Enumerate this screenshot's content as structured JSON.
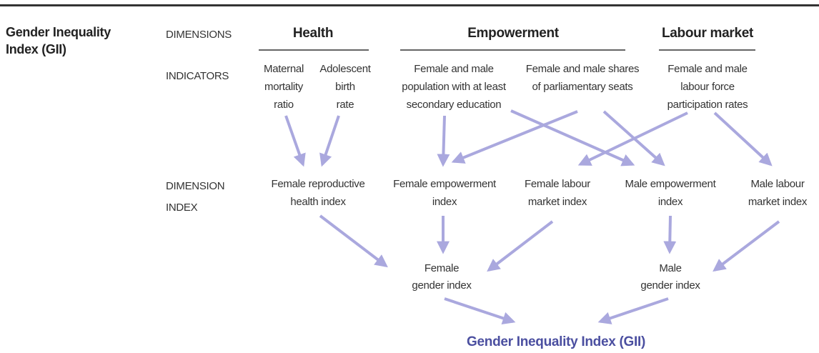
{
  "title": [
    "Gender Inequality",
    "Index (GII)"
  ],
  "row_labels": {
    "dimensions": [
      "DIMENSIONS"
    ],
    "indicators": [
      "INDICATORS"
    ],
    "dimension_index": [
      "DIMENSION",
      "INDEX"
    ]
  },
  "dimensions": [
    "Health",
    "Empowerment",
    "Labour market"
  ],
  "indicators": [
    [
      "Maternal",
      "mortality",
      "ratio"
    ],
    [
      "Adolescent",
      "birth",
      "rate"
    ],
    [
      "Female and male",
      "population with at least",
      "secondary education"
    ],
    [
      "Female and male shares",
      "of parliamentary seats"
    ],
    [
      "Female and male",
      "labour force",
      "participation rates"
    ]
  ],
  "dimension_indices": [
    [
      "Female reproductive",
      "health index"
    ],
    [
      "Female empowerment",
      "index"
    ],
    [
      "Female labour",
      "market index"
    ],
    [
      "Male empowerment",
      "index"
    ],
    [
      "Male labour",
      "market index"
    ]
  ],
  "gender_indices": [
    [
      "Female",
      "gender index"
    ],
    [
      "Male",
      "gender index"
    ]
  ],
  "final": "Gender Inequality Index (GII)"
}
